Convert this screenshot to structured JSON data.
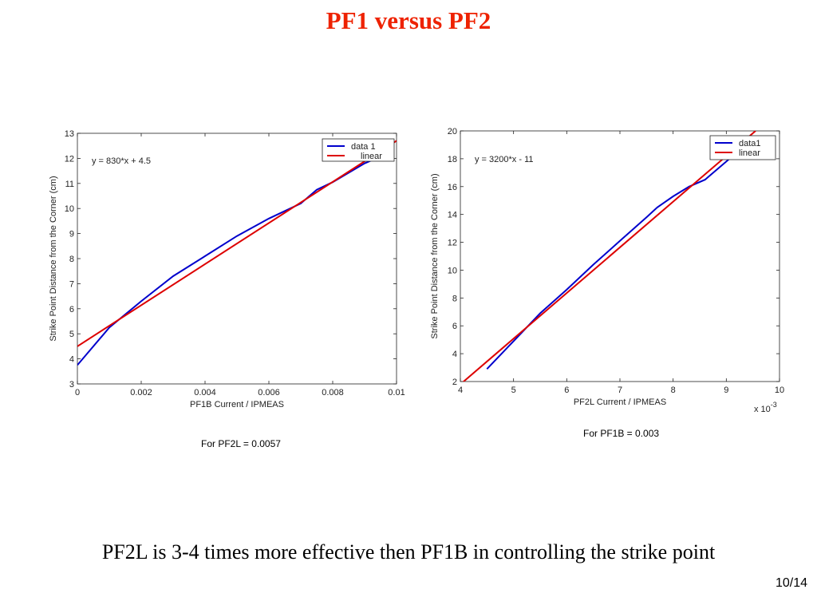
{
  "slide": {
    "title": "PF1 versus PF2",
    "statement": "PF2L is 3-4 times more effective then PF1B in controlling the strike point",
    "page_number": "10/14",
    "title_color": "#ee2200"
  },
  "chart_data": [
    {
      "type": "line",
      "xlabel": "PF1B Current / IPMEAS",
      "ylabel": "Strike Point Distance from the Corner (cm)",
      "xlim": [
        0,
        0.01
      ],
      "ylim": [
        3,
        13
      ],
      "xticks": [
        "0",
        "0.002",
        "0.004",
        "0.006",
        "0.008",
        "0.01"
      ],
      "yticks": [
        "3",
        "4",
        "5",
        "6",
        "7",
        "8",
        "9",
        "10",
        "11",
        "12",
        "13"
      ],
      "annotation": "y = 830*x + 4.5",
      "caption": "For PF2L = 0.0057",
      "legend_position": "top-right",
      "series": [
        {
          "name": "data 1",
          "color": "#0000cc",
          "x": [
            0,
            0.001,
            0.002,
            0.003,
            0.004,
            0.005,
            0.006,
            0.007,
            0.0075,
            0.008,
            0.009,
            0.0099
          ],
          "y": [
            3.75,
            5.25,
            6.3,
            7.3,
            8.1,
            8.9,
            9.6,
            10.2,
            10.75,
            11.05,
            11.8,
            12.3
          ]
        },
        {
          "name": "linear",
          "color": "#dd0000",
          "x": [
            0,
            0.01
          ],
          "y": [
            4.5,
            12.7
          ]
        }
      ]
    },
    {
      "type": "line",
      "xlabel": "PF2L Current / IPMEAS",
      "ylabel": "Strike Point Distance from the Corner (cm)",
      "xlim": [
        4,
        10
      ],
      "ylim": [
        2,
        20
      ],
      "xticks": [
        "4",
        "5",
        "6",
        "7",
        "8",
        "9",
        "10"
      ],
      "yticks": [
        "2",
        "4",
        "6",
        "8",
        "10",
        "12",
        "14",
        "16",
        "18",
        "20"
      ],
      "x_multiplier_base": "x 10",
      "x_multiplier_exponent": "-3",
      "annotation": "y = 3200*x - 11",
      "caption": "For PF1B = 0.003",
      "legend_position": "top-right",
      "series": [
        {
          "name": "data1",
          "color": "#0000cc",
          "x": [
            4.5,
            5.0,
            5.5,
            6.0,
            6.5,
            7.0,
            7.5,
            7.7,
            8.0,
            8.3,
            8.6,
            9.0,
            9.3
          ],
          "y": [
            2.9,
            4.9,
            6.9,
            8.6,
            10.4,
            12.1,
            13.8,
            14.5,
            15.3,
            16.0,
            16.5,
            17.8,
            18.8
          ]
        },
        {
          "name": "linear",
          "color": "#dd0000",
          "x": [
            4.0,
            9.55
          ],
          "y": [
            1.8,
            20.0
          ]
        }
      ]
    }
  ]
}
